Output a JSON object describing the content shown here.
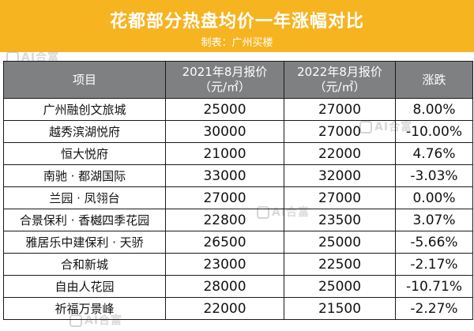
{
  "header": {
    "title": "花都部分热盘均价一年涨幅对比",
    "subtitle": "制表：广州买楼"
  },
  "watermark": {
    "text": "AI合富"
  },
  "table": {
    "columns": [
      {
        "label": "项目",
        "sub": ""
      },
      {
        "label": "2021年8月报价",
        "sub": "（元/㎡）"
      },
      {
        "label": "2022年8月报价",
        "sub": "（元/㎡）"
      },
      {
        "label": "涨跌",
        "sub": ""
      }
    ],
    "rows": [
      {
        "project": "广州融创文旅城",
        "price_2021": "25000",
        "price_2022": "27000",
        "change": "8.00%"
      },
      {
        "project": "越秀滨湖悦府",
        "price_2021": "30000",
        "price_2022": "27000",
        "change": "-10.00%"
      },
      {
        "project": "恒大悦府",
        "price_2021": "21000",
        "price_2022": "22000",
        "change": "4.76%"
      },
      {
        "project": "南驰 · 都湖国际",
        "price_2021": "33000",
        "price_2022": "32000",
        "change": "-3.03%"
      },
      {
        "project": "兰园 · 凤翎台",
        "price_2021": "27000",
        "price_2022": "27000",
        "change": "0.00%"
      },
      {
        "project": "合景保利 · 香樾四季花园",
        "price_2021": "22800",
        "price_2022": "23500",
        "change": "3.07%"
      },
      {
        "project": "雅居乐中建保利 · 天骄",
        "price_2021": "26500",
        "price_2022": "25000",
        "change": "-5.66%"
      },
      {
        "project": "合和新城",
        "price_2021": "23000",
        "price_2022": "22500",
        "change": "-2.17%"
      },
      {
        "project": "自由人花园",
        "price_2021": "28000",
        "price_2022": "25000",
        "change": "-10.71%"
      },
      {
        "project": "祈福万景峰",
        "price_2021": "22000",
        "price_2022": "21500",
        "change": "-2.27%"
      }
    ]
  }
}
